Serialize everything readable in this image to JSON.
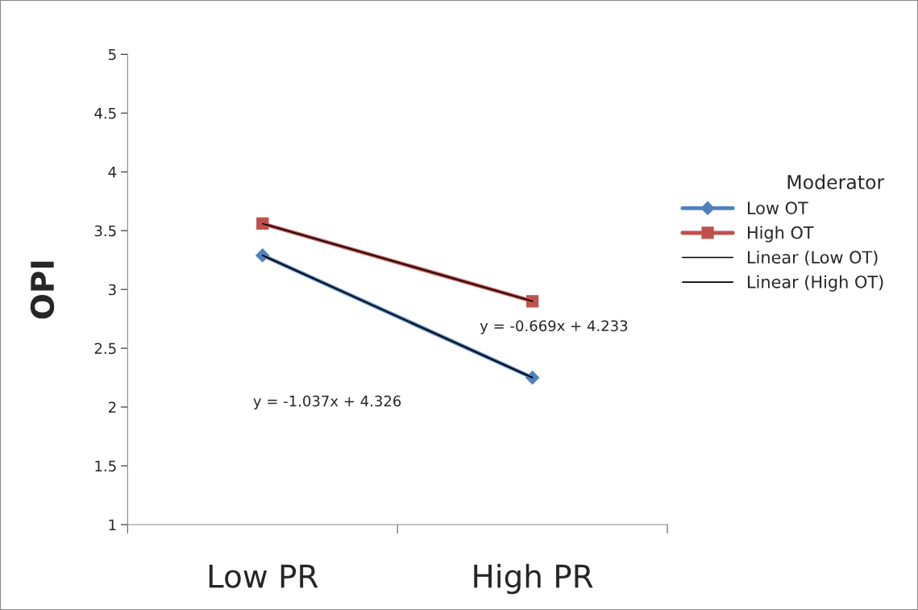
{
  "chart_data": {
    "type": "line",
    "ylabel": "OPI",
    "legend_title": "Moderator",
    "legend": "right",
    "categories": [
      "Low PR",
      "High PR"
    ],
    "series": [
      {
        "name": "Low OT",
        "color": "#4f81bd",
        "values": [
          3.29,
          2.25
        ],
        "marker": "diamond"
      },
      {
        "name": "High OT",
        "color": "#c0504d",
        "values": [
          3.56,
          2.9
        ],
        "marker": "square"
      },
      {
        "name": "Linear (Low OT)",
        "color": "#000000",
        "values": [
          3.29,
          2.25
        ],
        "marker": "none"
      },
      {
        "name": "Linear (High OT)",
        "color": "#000000",
        "values": [
          3.56,
          2.9
        ],
        "marker": "none"
      }
    ],
    "ylim": [
      1,
      5
    ],
    "yticks": [
      1,
      1.5,
      2,
      2.5,
      3,
      3.5,
      4,
      4.5,
      5
    ],
    "grid": false,
    "annotations": [
      "y = -0.669x + 4.233",
      "y = -1.037x + 4.326"
    ]
  }
}
